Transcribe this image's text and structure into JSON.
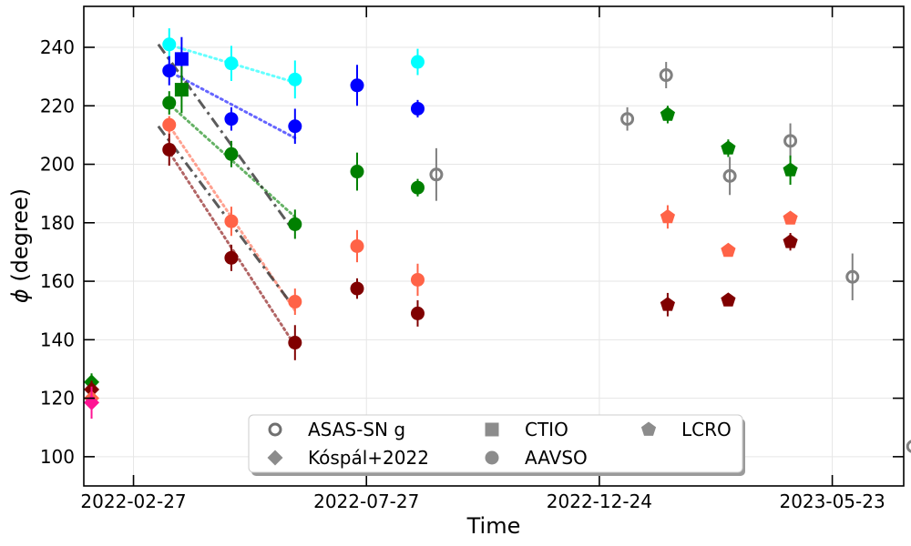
{
  "chart_data": {
    "type": "scatter",
    "title": "",
    "xlabel": "Time",
    "ylabel_symbol": "ϕ",
    "ylabel_rest": " (degree)",
    "x_units": "days since 2022-02-27",
    "xlim": [
      -32,
      496
    ],
    "ylim": [
      90,
      254
    ],
    "grid": true,
    "x_ticks": [
      {
        "value": 0,
        "label": "2022-02-27"
      },
      {
        "value": 150,
        "label": "2022-07-27"
      },
      {
        "value": 300,
        "label": "2022-12-24"
      },
      {
        "value": 450,
        "label": "2023-05-23"
      }
    ],
    "y_ticks": [
      {
        "value": 100,
        "label": "100"
      },
      {
        "value": 120,
        "label": "120"
      },
      {
        "value": 140,
        "label": "140"
      },
      {
        "value": 160,
        "label": "160"
      },
      {
        "value": 180,
        "label": "180"
      },
      {
        "value": 200,
        "label": "200"
      },
      {
        "value": 220,
        "label": "220"
      },
      {
        "value": 240,
        "label": "240"
      }
    ],
    "colors": {
      "cyan": "#00ffff",
      "blue": "#0000ff",
      "green": "#008000",
      "tomato": "#ff6347",
      "maroon": "#800000",
      "deeppink": "#ff1493",
      "gray": "#808080"
    },
    "trend_lines": [
      {
        "color": "cyan",
        "x": [
          22,
          104
        ],
        "y": [
          241,
          228
        ],
        "style": "dotted"
      },
      {
        "color": "blue",
        "x": [
          22,
          104
        ],
        "y": [
          232,
          209
        ],
        "style": "dotted"
      },
      {
        "color": "green",
        "x": [
          22,
          104
        ],
        "y": [
          221,
          182
        ],
        "style": "dotted"
      },
      {
        "color": "tomato",
        "x": [
          22,
          104
        ],
        "y": [
          214,
          150
        ],
        "style": "dotted"
      },
      {
        "color": "maroon",
        "x": [
          22,
          104
        ],
        "y": [
          205,
          138
        ],
        "style": "dotted"
      },
      {
        "color": "#333333",
        "x": [
          16,
          102
        ],
        "y": [
          241,
          178
        ],
        "style": "dashdot"
      },
      {
        "color": "#333333",
        "x": [
          16,
          102
        ],
        "y": [
          213,
          152
        ],
        "style": "dashdot"
      }
    ],
    "series": [
      {
        "name": "ASAS-SN g",
        "marker": "open-circle",
        "color": "gray",
        "points": [
          {
            "x": 195,
            "y": 196.5,
            "err": 9
          },
          {
            "x": 318,
            "y": 215.5,
            "err": 4
          },
          {
            "x": 343,
            "y": 230.5,
            "err": 4.5
          },
          {
            "x": 384,
            "y": 196,
            "err": 6.5
          },
          {
            "x": 423,
            "y": 208,
            "err": 6
          },
          {
            "x": 463,
            "y": 161.5,
            "err": 8
          },
          {
            "x": 502,
            "y": 103.5,
            "err": 5.5
          }
        ]
      },
      {
        "name": "Kóspál+2022",
        "marker": "diamond",
        "color": "various",
        "points": [
          {
            "x": -27,
            "y": 125.5,
            "err": 3,
            "color": "green"
          },
          {
            "x": -27,
            "y": 123,
            "err": 3,
            "color": "maroon"
          },
          {
            "x": -27,
            "y": 120,
            "err": 3,
            "color": "tomato"
          },
          {
            "x": -27,
            "y": 118.5,
            "err": 5.5,
            "color": "deeppink"
          }
        ]
      },
      {
        "name": "CTIO",
        "marker": "square",
        "color": "various",
        "points": [
          {
            "x": 31,
            "y": 236,
            "err": 7.5,
            "color": "blue"
          },
          {
            "x": 31,
            "y": 225.5,
            "err": 8,
            "color": "green"
          }
        ]
      },
      {
        "name": "AAVSO",
        "marker": "circle",
        "color": "various",
        "points": [
          {
            "x": 23,
            "y": 241,
            "err": 5.5,
            "color": "cyan"
          },
          {
            "x": 63,
            "y": 234.5,
            "err": 6,
            "color": "cyan"
          },
          {
            "x": 104,
            "y": 229,
            "err": 6.5,
            "color": "cyan"
          },
          {
            "x": 183,
            "y": 235,
            "err": 4.5,
            "color": "cyan"
          },
          {
            "x": 23,
            "y": 232,
            "err": 5,
            "color": "blue"
          },
          {
            "x": 63,
            "y": 215.5,
            "err": 4,
            "color": "blue"
          },
          {
            "x": 104,
            "y": 213,
            "err": 6,
            "color": "blue"
          },
          {
            "x": 144,
            "y": 227,
            "err": 7,
            "color": "blue"
          },
          {
            "x": 183,
            "y": 219,
            "err": 3,
            "color": "blue"
          },
          {
            "x": 23,
            "y": 221,
            "err": 4,
            "color": "green"
          },
          {
            "x": 63,
            "y": 203.5,
            "err": 4.5,
            "color": "green"
          },
          {
            "x": 104,
            "y": 179.5,
            "err": 5,
            "color": "green"
          },
          {
            "x": 144,
            "y": 197.5,
            "err": 6.5,
            "color": "green"
          },
          {
            "x": 183,
            "y": 192,
            "err": 3,
            "color": "green"
          },
          {
            "x": 23,
            "y": 213.5,
            "err": 3,
            "color": "tomato"
          },
          {
            "x": 63,
            "y": 180.5,
            "err": 5,
            "color": "tomato"
          },
          {
            "x": 104,
            "y": 153,
            "err": 4.5,
            "color": "tomato"
          },
          {
            "x": 144,
            "y": 172,
            "err": 5.5,
            "color": "tomato"
          },
          {
            "x": 183,
            "y": 160.5,
            "err": 5.5,
            "color": "tomato"
          },
          {
            "x": 23,
            "y": 205,
            "err": 5.5,
            "color": "maroon"
          },
          {
            "x": 63,
            "y": 168,
            "err": 4.5,
            "color": "maroon"
          },
          {
            "x": 104,
            "y": 139,
            "err": 6,
            "color": "maroon"
          },
          {
            "x": 144,
            "y": 157.5,
            "err": 3.5,
            "color": "maroon"
          },
          {
            "x": 183,
            "y": 149,
            "err": 4.5,
            "color": "maroon"
          }
        ]
      },
      {
        "name": "LCRO",
        "marker": "pentagon",
        "color": "various",
        "points": [
          {
            "x": 344,
            "y": 217,
            "err": 3,
            "color": "green"
          },
          {
            "x": 383,
            "y": 205.5,
            "err": 3,
            "color": "green"
          },
          {
            "x": 423,
            "y": 198,
            "err": 5,
            "color": "green"
          },
          {
            "x": 344,
            "y": 182,
            "err": 4,
            "color": "tomato"
          },
          {
            "x": 383,
            "y": 170.5,
            "err": 2,
            "color": "tomato"
          },
          {
            "x": 423,
            "y": 181.5,
            "err": 2,
            "color": "tomato"
          },
          {
            "x": 344,
            "y": 152,
            "err": 4,
            "color": "maroon"
          },
          {
            "x": 383,
            "y": 153.5,
            "err": 2,
            "color": "maroon"
          },
          {
            "x": 423,
            "y": 173.5,
            "err": 3,
            "color": "maroon"
          }
        ]
      }
    ],
    "legend": {
      "placement": "lower-center",
      "columns": 3,
      "entries": [
        {
          "label": "ASAS-SN g",
          "marker": "open-circle"
        },
        {
          "label": "Kóspál+2022",
          "marker": "diamond"
        },
        {
          "label": "CTIO",
          "marker": "square"
        },
        {
          "label": "AAVSO",
          "marker": "circle"
        },
        {
          "label": "LCRO",
          "marker": "pentagon"
        }
      ]
    }
  }
}
